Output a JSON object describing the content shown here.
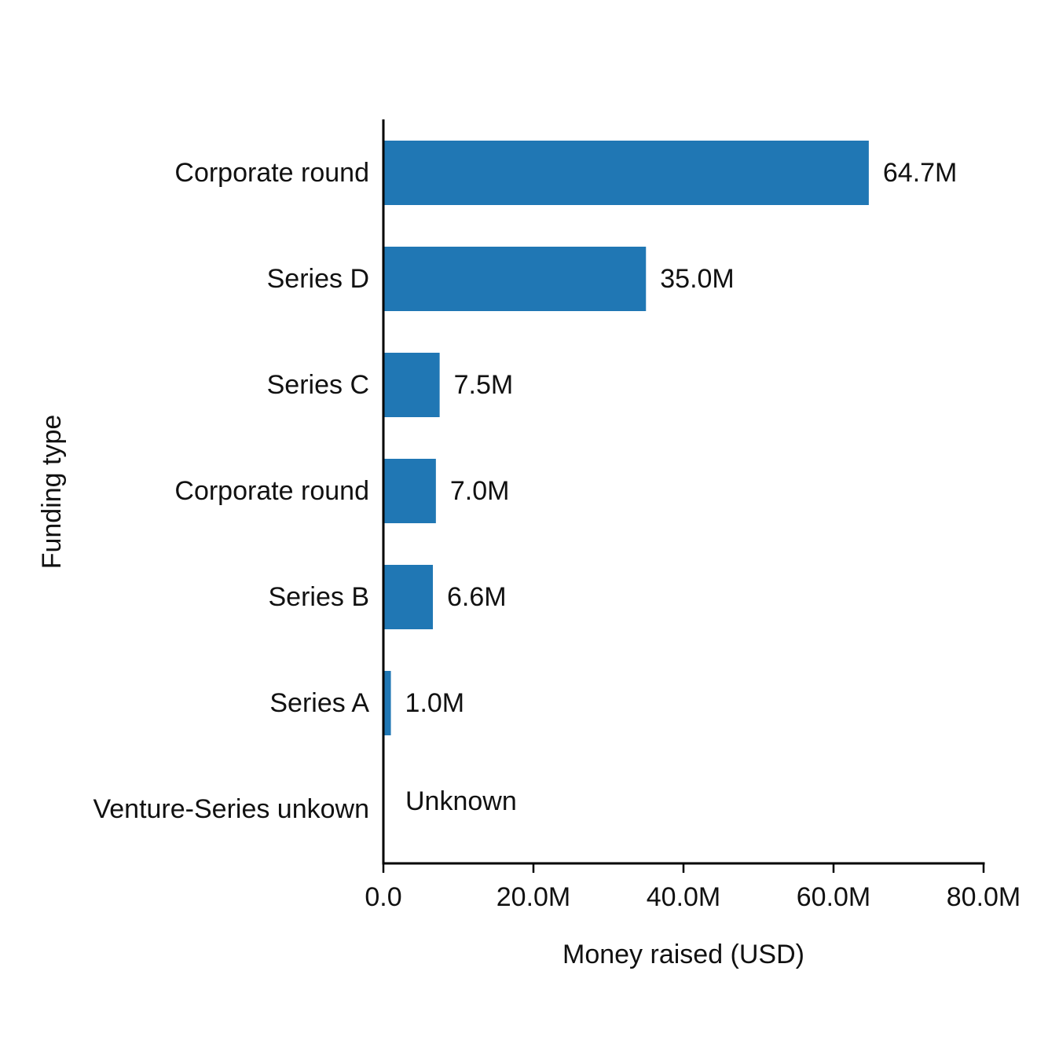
{
  "chart_data": {
    "type": "bar",
    "orientation": "horizontal",
    "categories": [
      "Corporate round",
      "Series D",
      "Series C",
      "Corporate round",
      "Series B",
      "Series A",
      "Venture-Series unkown"
    ],
    "values": [
      64.7,
      35.0,
      7.5,
      7.0,
      6.6,
      1.0,
      null
    ],
    "value_labels": [
      "64.7M",
      "35.0M",
      "7.5M",
      "7.0M",
      "6.6M",
      "1.0M",
      "Unknown"
    ],
    "xlabel": "Money raised (USD)",
    "ylabel": "Funding type",
    "xlim": [
      0,
      80
    ],
    "xticks": [
      0,
      20,
      40,
      60,
      80
    ],
    "xtick_labels": [
      "0.0",
      "20.0M",
      "40.0M",
      "60.0M",
      "80.0M"
    ],
    "bar_color": "#2077b4",
    "grid": false
  }
}
